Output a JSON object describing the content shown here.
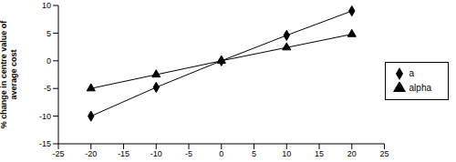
{
  "chart_data": {
    "type": "line",
    "y_label": "% change in centre value of average cost",
    "x": [
      -20,
      -10,
      0,
      10,
      20
    ],
    "series": [
      {
        "name": "a",
        "color": "#000000",
        "marker": "diamond",
        "values": [
          -10,
          -4.8,
          0,
          4.6,
          9
        ]
      },
      {
        "name": "alpha",
        "color": "#000000",
        "marker": "triangle",
        "values": [
          -5,
          -2.5,
          0,
          2.4,
          4.8
        ]
      }
    ],
    "xlim": [
      -25,
      25
    ],
    "xticks": [
      -25,
      -20,
      -15,
      -10,
      -5,
      0,
      5,
      10,
      15,
      20,
      25
    ],
    "ylim": [
      -15,
      10
    ],
    "yticks": [
      -15,
      -10,
      -5,
      0,
      5,
      10
    ],
    "grid": false,
    "legend": "right"
  }
}
